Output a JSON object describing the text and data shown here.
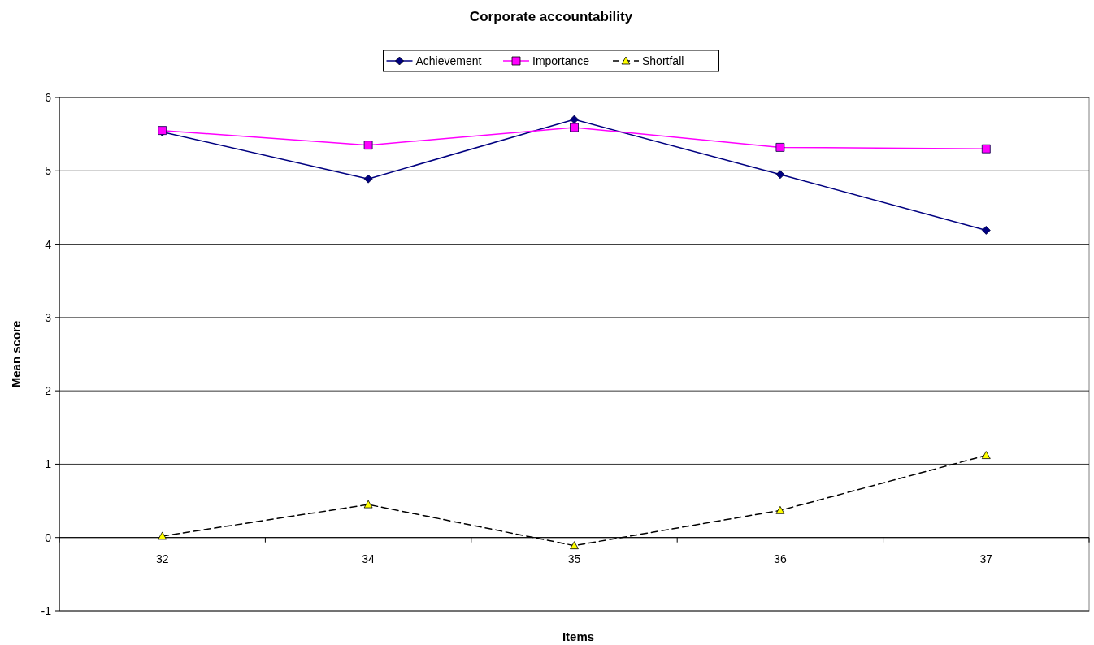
{
  "chart_data": {
    "type": "line",
    "title": "Corporate accountability",
    "xlabel": "Items",
    "ylabel": "Mean score",
    "categories": [
      "32",
      "34",
      "35",
      "36",
      "37"
    ],
    "series": [
      {
        "name": "Achievement",
        "color": "#000080",
        "marker": "diamond",
        "line_style": "solid",
        "values": [
          5.53,
          4.89,
          5.7,
          4.95,
          4.19
        ]
      },
      {
        "name": "Importance",
        "color": "#ff00ff",
        "marker": "square",
        "line_style": "solid",
        "values": [
          5.55,
          5.35,
          5.59,
          5.32,
          5.3
        ]
      },
      {
        "name": "Shortfall",
        "color": "#000000",
        "colors": [
          "#ffff00",
          "#ffff00",
          "#ffff00",
          "#ffff00",
          "#ffff00"
        ],
        "marker": "triangle",
        "line_style": "dashed",
        "values": [
          0.02,
          0.45,
          -0.11,
          0.37,
          1.12
        ]
      }
    ],
    "ylim": [
      -1,
      6
    ],
    "yticks": [
      -1,
      0,
      1,
      2,
      3,
      4,
      5,
      6
    ],
    "grid": "y",
    "legend": "top"
  }
}
